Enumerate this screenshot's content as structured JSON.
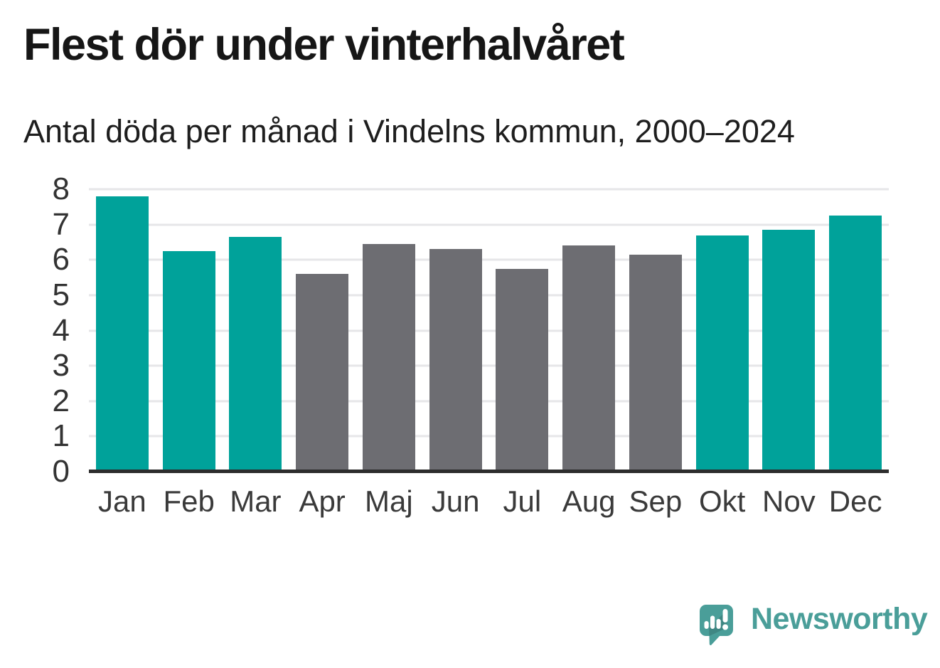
{
  "chart_data": {
    "type": "bar",
    "title": "Flest dör under vinterhalvåret",
    "subtitle": "Antal döda per månad i Vindelns kommun, 2000–2024",
    "categories": [
      "Jan",
      "Feb",
      "Mar",
      "Apr",
      "Maj",
      "Jun",
      "Jul",
      "Aug",
      "Sep",
      "Okt",
      "Nov",
      "Dec"
    ],
    "values": [
      7.8,
      6.25,
      6.65,
      5.6,
      6.45,
      6.3,
      5.75,
      6.4,
      6.15,
      6.7,
      6.85,
      7.25
    ],
    "highlighted": [
      true,
      true,
      true,
      false,
      false,
      false,
      false,
      false,
      false,
      true,
      true,
      true
    ],
    "xlabel": "",
    "ylabel": "",
    "ylim": [
      0,
      8
    ],
    "yticks": [
      0,
      1,
      2,
      3,
      4,
      5,
      6,
      7,
      8
    ],
    "grid": "horizontal",
    "legend": "none",
    "colors": {
      "highlight": "#00a29a",
      "base": "#6d6d72",
      "gridline": "#e6e6e8",
      "axis_line": "#2d2d2d",
      "tick_text": "#333333",
      "title_text": "#161616"
    }
  },
  "branding": {
    "logo_text": "Newsworthy",
    "logo_color": "#4a9e99",
    "logo_icon": "speech-bubble-bar-chart-icon"
  }
}
